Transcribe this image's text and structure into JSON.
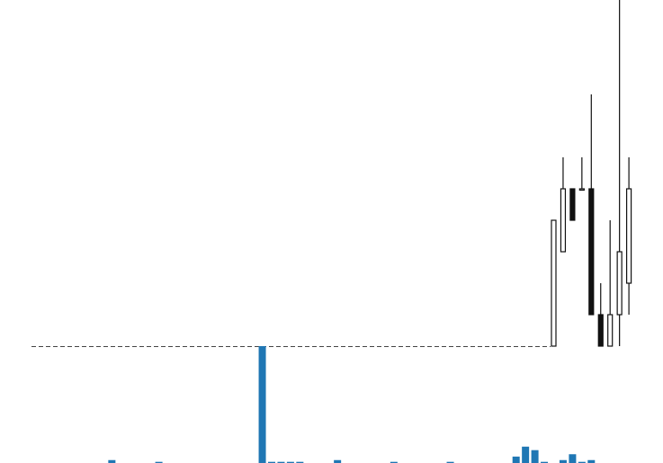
{
  "chart_data": {
    "type": "candlestick",
    "colors": {
      "up_body": "#ffffff",
      "down_body": "#111111",
      "candle_edge": "#111111",
      "volume": "#1f77b4",
      "reference_line": "#444444"
    },
    "price_axis": {
      "ylim": [
        0.0,
        11.0
      ],
      "reference_level": 0.0
    },
    "volume_axis": {
      "ylim": [
        0.0,
        100.0
      ]
    },
    "candles": [
      {
        "slot": 58,
        "open": 0.0,
        "high": 4.0,
        "low": 0.0,
        "close": 4.0
      },
      {
        "slot": 59,
        "open": 3.0,
        "high": 6.0,
        "low": 3.0,
        "close": 5.0
      },
      {
        "slot": 60,
        "open": 5.0,
        "high": 5.0,
        "low": 4.0,
        "close": 4.0
      },
      {
        "slot": 61,
        "open": 5.0,
        "high": 6.0,
        "low": 5.0,
        "close": 5.0
      },
      {
        "slot": 62,
        "open": 5.0,
        "high": 8.0,
        "low": 1.0,
        "close": 1.0
      },
      {
        "slot": 63,
        "open": 1.0,
        "high": 2.0,
        "low": 0.0,
        "close": 0.0
      },
      {
        "slot": 64,
        "open": 0.0,
        "high": 4.0,
        "low": 0.0,
        "close": 1.0
      },
      {
        "slot": 65,
        "open": 1.0,
        "high": 11.0,
        "low": 0.0,
        "close": 3.0
      },
      {
        "slot": 66,
        "open": 2.0,
        "high": 6.0,
        "low": 1.0,
        "close": 5.0
      }
    ],
    "volumes": [
      {
        "slot": 11,
        "value": 2.5
      },
      {
        "slot": 16,
        "value": 1.0
      },
      {
        "slot": 27,
        "value": 100.0
      },
      {
        "slot": 28,
        "value": 1.0
      },
      {
        "slot": 29,
        "value": 1.0
      },
      {
        "slot": 30,
        "value": 1.0
      },
      {
        "slot": 31,
        "value": 1.0
      },
      {
        "slot": 35,
        "value": 2.5
      },
      {
        "slot": 41,
        "value": 1.0
      },
      {
        "slot": 47,
        "value": 1.0
      },
      {
        "slot": 54,
        "value": 5.5
      },
      {
        "slot": 55,
        "value": 14.0
      },
      {
        "slot": 56,
        "value": 11.0
      },
      {
        "slot": 57,
        "value": 1.0
      },
      {
        "slot": 59,
        "value": 2.5
      },
      {
        "slot": 60,
        "value": 7.5
      },
      {
        "slot": 61,
        "value": 1.0
      },
      {
        "slot": 62,
        "value": 2.5
      }
    ]
  }
}
